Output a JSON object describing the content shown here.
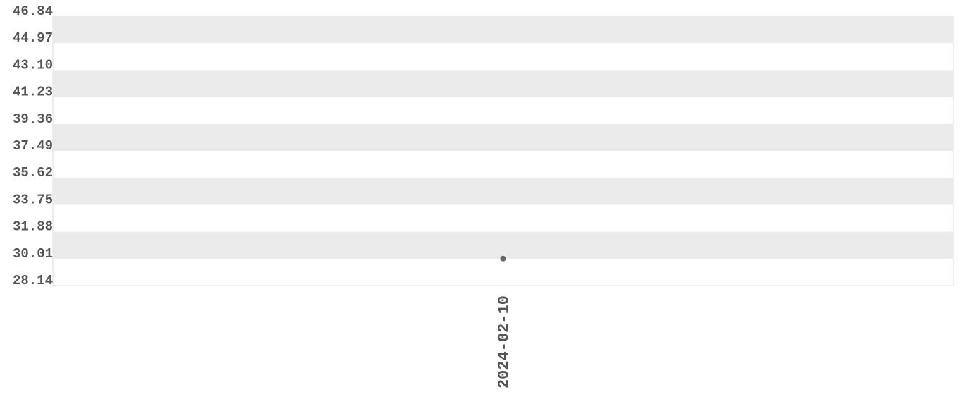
{
  "chart_data": {
    "type": "line",
    "categories": [
      "2024-02-10"
    ],
    "values": [
      30.01
    ],
    "color": "#666666",
    "ylim": [
      28.14,
      46.84
    ],
    "yticks": [
      28.14,
      30.01,
      31.88,
      33.75,
      35.62,
      37.49,
      39.36,
      41.23,
      {
        "value": 43.1,
        "label": "43.10"
      },
      44.97,
      46.84
    ],
    "grid": true
  }
}
